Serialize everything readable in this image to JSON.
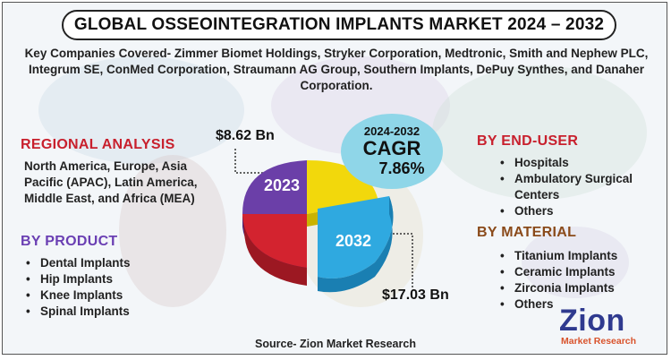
{
  "title": "GLOBAL OSSEOINTEGRATION IMPLANTS MARKET 2024 – 2032",
  "companies": "Key Companies Covered- Zimmer Biomet Holdings, Stryker Corporation, Medtronic, Smith and Nephew PLC, Integrum SE, ConMed Corporation, Straumann AG Group, Southern Implants, DePuy Synthes, and Danaher Corporation.",
  "regional": {
    "heading": "REGIONAL ANALYSIS",
    "text": "North America, Europe, Asia Pacific (APAC), Latin America, Middle East, and Africa (MEA)"
  },
  "product": {
    "heading": "BY PRODUCT",
    "items": [
      "Dental Implants",
      "Hip Implants",
      "Knee Implants",
      "Spinal Implants"
    ]
  },
  "end_user": {
    "heading": "BY END-USER",
    "items": [
      "Hospitals",
      "Ambulatory Surgical Centers",
      "Others"
    ]
  },
  "material": {
    "heading": "BY MATERIAL",
    "items": [
      "Titanium Implants",
      "Ceramic Implants",
      "Zirconia Implants",
      "Others"
    ]
  },
  "cagr": {
    "years": "2024-2032",
    "label": "CAGR",
    "value": "7.86%"
  },
  "chart_data": {
    "type": "pie",
    "title": "",
    "categories": [
      "2023",
      "2032"
    ],
    "values": [
      8.62,
      17.03
    ],
    "value_labels": [
      "$8.62 Bn",
      "$17.03 Bn"
    ],
    "unit": "USD Bn",
    "colors": {
      "purple": "#6b3fa8",
      "yellow": "#f2d80c",
      "red": "#d3232f",
      "blue": "#2fa9e0"
    }
  },
  "source": "Source- Zion Market Research",
  "logo": {
    "name": "Zion",
    "sub": "Market Research"
  }
}
